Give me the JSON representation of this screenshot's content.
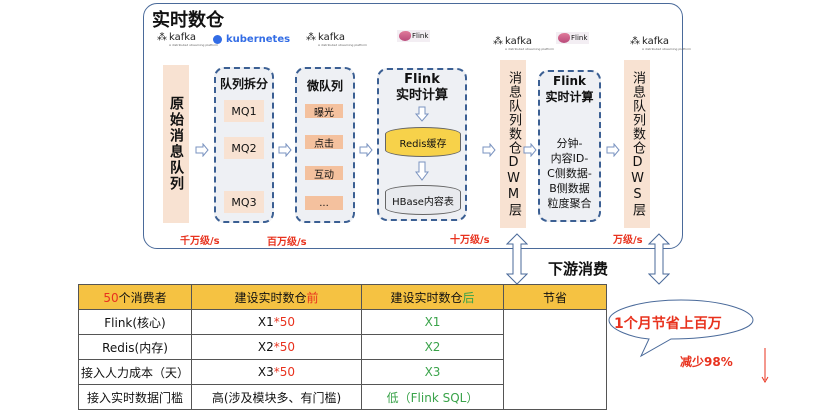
{
  "title": "实时数仓",
  "logos": {
    "kafka": "kafka",
    "kafka_tagline": "A distributed streaming platform",
    "kubernetes": "kubernetes",
    "flink": "Flink"
  },
  "pipeline": {
    "source": "原始消息队列",
    "split": {
      "title": "队列拆分",
      "items": [
        "MQ1",
        "MQ2",
        "MQ3"
      ]
    },
    "micro": {
      "title": "微队列",
      "items": [
        "曝光",
        "点击",
        "互动",
        "..."
      ]
    },
    "flink1": {
      "title1": "Flink",
      "title2": "实时计算",
      "redis": "Redis缓存",
      "hbase": "HBase内容表"
    },
    "dwm": "消息队列数仓DWM层",
    "flink2": {
      "title1": "Flink",
      "title2": "实时计算",
      "body": [
        "分钟-",
        "内容ID-",
        "C侧数据-",
        "B侧数据",
        "粒度聚合"
      ]
    },
    "dws": "消息队列数仓DWS层"
  },
  "rates": [
    "千万级/s",
    "百万级/s",
    "十万级/s",
    "万级/s"
  ],
  "downstream": "下游消费",
  "table": {
    "headers": [
      {
        "a": "50",
        "b": "个消费者"
      },
      {
        "a": "建设实时数仓",
        "b": "前"
      },
      {
        "a": "建设实时数仓",
        "b": "后"
      },
      {
        "a": "节省",
        "b": ""
      }
    ],
    "rows": [
      {
        "name": "Flink(核心)",
        "before": "X1",
        "before_mult": "*50",
        "after": "X1"
      },
      {
        "name": "Redis(内存)",
        "before": "X2",
        "before_mult": "*50",
        "after": "X2"
      },
      {
        "name": "接入人力成本（天）",
        "before": "X3",
        "before_mult": "*50",
        "after": "X3"
      },
      {
        "name": "接入实时数据门槛",
        "before": "高(涉及模块多、有门槛)",
        "before_mult": "",
        "after": "低（Flink SQL）"
      }
    ],
    "callout": "1个月节省上百万",
    "reduction": "减少98%"
  },
  "colors": {
    "accent_red": "#e8321e",
    "green": "#3aa34a",
    "header": "#f5c242",
    "dashed_border": "#3b5f93",
    "redis": "#f7d24a"
  }
}
